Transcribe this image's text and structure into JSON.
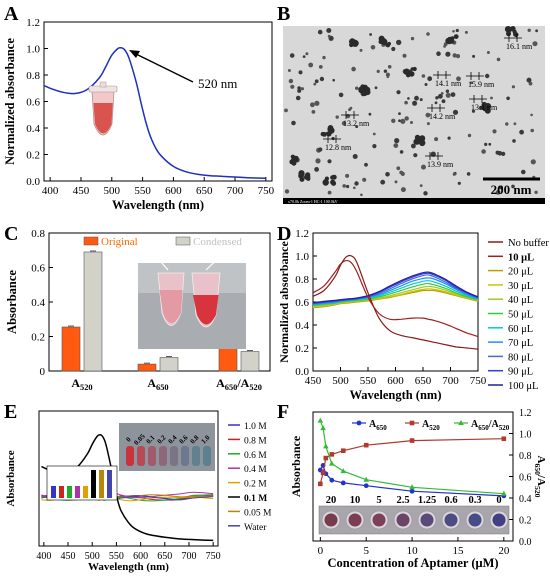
{
  "panels": {
    "A": {
      "letter": "A",
      "chart_data": {
        "type": "line",
        "xlabel": "Wavelength (nm)",
        "ylabel": "Normalized absorbance",
        "xlim": [
          390,
          760
        ],
        "ylim": [
          0,
          1.2
        ],
        "xticks": [
          "400",
          "450",
          "500",
          "550",
          "600",
          "650",
          "700",
          "750"
        ],
        "yticks": [
          "0.0",
          "0.2",
          "0.4",
          "0.6",
          "0.8",
          "1.0",
          "1.2"
        ],
        "annotation": "520 nm",
        "series": [
          {
            "color": "#1f2fbf",
            "x": [
              390,
              400,
              420,
              440,
              460,
              480,
              490,
              500,
              510,
              515,
              520,
              525,
              530,
              540,
              550,
              560,
              570,
              580,
              600,
              620,
              640,
              660,
              680,
              700,
              720,
              750
            ],
            "y": [
              0.72,
              0.7,
              0.67,
              0.66,
              0.69,
              0.78,
              0.86,
              0.95,
              1.0,
              1.005,
              0.995,
              0.96,
              0.9,
              0.74,
              0.54,
              0.37,
              0.26,
              0.19,
              0.11,
              0.07,
              0.05,
              0.04,
              0.035,
              0.03,
              0.025,
              0.02
            ]
          }
        ]
      }
    },
    "B": {
      "letter": "B",
      "scalebar": "200 nm",
      "footer": "x70.0k Zoom-1 HC-1 100.0kV",
      "measurements": [
        "16.1 nm",
        "14.1 nm",
        "15.9 nm",
        "14.2 nm",
        "13.1 nm",
        "13.2 nm",
        "12.8 nm",
        "13.9 nm"
      ]
    },
    "C": {
      "letter": "C",
      "chart_data": {
        "type": "bar",
        "ylabel": "Absorbance",
        "ylim": [
          0,
          0.8
        ],
        "yticks": [
          "0",
          "0.2",
          "0.4",
          "0.6",
          "0.8"
        ],
        "categories": [
          "A520",
          "A650",
          "A650/A520"
        ],
        "category_labels": [
          "A520",
          "A650",
          "A650/A520"
        ],
        "series": [
          {
            "name": "Original",
            "color": "#ff5a10",
            "values": [
              0.255,
              0.04,
              0.145
            ]
          },
          {
            "name": "Condensed",
            "color": "#d2d2c8",
            "values": [
              0.69,
              0.078,
              0.113
            ]
          }
        ],
        "legend_color_original": "#ff6a00",
        "legend_color_condensed": "#c0c0c0"
      }
    },
    "D": {
      "letter": "D",
      "chart_data": {
        "type": "line",
        "xlabel": "Wavelength (nm)",
        "ylabel": "Normalized absorbance",
        "xlim": [
          450,
          750
        ],
        "ylim": [
          0,
          1.2
        ],
        "xticks": [
          "450",
          "500",
          "550",
          "600",
          "650",
          "700",
          "750"
        ],
        "yticks": [
          "0.0",
          "0.2",
          "0.4",
          "0.6",
          "0.8",
          "1.0",
          "1.2"
        ],
        "x": [
          450,
          470,
          490,
          500,
          510,
          520,
          530,
          550,
          570,
          590,
          610,
          630,
          650,
          660,
          670,
          690,
          710,
          730,
          750
        ],
        "nobuffer": {
          "name": "No buffer",
          "color": "#8b1a1a",
          "y": [
            0.65,
            0.7,
            0.82,
            0.92,
            0.99,
            1.0,
            0.94,
            0.68,
            0.46,
            0.35,
            0.31,
            0.29,
            0.27,
            0.26,
            0.25,
            0.23,
            0.21,
            0.2,
            0.19
          ]
        },
        "tenul": {
          "name": "10 μL",
          "color": "#a02020",
          "y": [
            0.68,
            0.74,
            0.86,
            0.93,
            0.96,
            0.94,
            0.86,
            0.64,
            0.5,
            0.45,
            0.45,
            0.46,
            0.46,
            0.45,
            0.44,
            0.41,
            0.37,
            0.33,
            0.3
          ]
        },
        "buffer_series": [
          {
            "name": "20 μL",
            "color": "#b8a000",
            "y": [
              0.55,
              0.56,
              0.575,
              0.585,
              0.59,
              0.595,
              0.6,
              0.61,
              0.625,
              0.64,
              0.66,
              0.68,
              0.7,
              0.7,
              0.7,
              0.68,
              0.655,
              0.63,
              0.605
            ]
          },
          {
            "name": "30 μL",
            "color": "#cfc000",
            "y": [
              0.555,
              0.565,
              0.58,
              0.59,
              0.595,
              0.6,
              0.605,
              0.615,
              0.63,
              0.645,
              0.665,
              0.69,
              0.71,
              0.715,
              0.71,
              0.69,
              0.66,
              0.635,
              0.61
            ]
          },
          {
            "name": "40 μL",
            "color": "#9acd32",
            "y": [
              0.56,
              0.57,
              0.585,
              0.595,
              0.6,
              0.605,
              0.61,
              0.62,
              0.635,
              0.655,
              0.68,
              0.705,
              0.73,
              0.735,
              0.73,
              0.705,
              0.67,
              0.64,
              0.615
            ]
          },
          {
            "name": "50 μL",
            "color": "#32cd32",
            "y": [
              0.57,
              0.58,
              0.59,
              0.6,
              0.605,
              0.61,
              0.615,
              0.625,
              0.645,
              0.67,
              0.7,
              0.73,
              0.755,
              0.76,
              0.75,
              0.72,
              0.68,
              0.645,
              0.62
            ]
          },
          {
            "name": "60 μL",
            "color": "#00cccc",
            "y": [
              0.575,
              0.585,
              0.595,
              0.605,
              0.61,
              0.615,
              0.62,
              0.63,
              0.655,
              0.685,
              0.72,
              0.755,
              0.78,
              0.785,
              0.775,
              0.74,
              0.695,
              0.655,
              0.625
            ]
          },
          {
            "name": "70 μL",
            "color": "#1e90ff",
            "y": [
              0.58,
              0.59,
              0.6,
              0.61,
              0.615,
              0.62,
              0.625,
              0.64,
              0.665,
              0.7,
              0.74,
              0.78,
              0.805,
              0.81,
              0.8,
              0.76,
              0.71,
              0.665,
              0.63
            ]
          },
          {
            "name": "80 μL",
            "color": "#4169e1",
            "y": [
              0.585,
              0.595,
              0.605,
              0.612,
              0.618,
              0.622,
              0.628,
              0.645,
              0.675,
              0.715,
              0.76,
              0.8,
              0.83,
              0.835,
              0.82,
              0.775,
              0.72,
              0.675,
              0.635
            ]
          },
          {
            "name": "90 μL",
            "color": "#3a3acd",
            "y": [
              0.59,
              0.6,
              0.61,
              0.615,
              0.62,
              0.625,
              0.63,
              0.65,
              0.685,
              0.73,
              0.775,
              0.815,
              0.845,
              0.85,
              0.835,
              0.79,
              0.73,
              0.68,
              0.64
            ]
          },
          {
            "name": "100 μL",
            "color": "#2020a0",
            "y": [
              0.595,
              0.605,
              0.615,
              0.62,
              0.625,
              0.63,
              0.635,
              0.655,
              0.69,
              0.74,
              0.785,
              0.825,
              0.855,
              0.86,
              0.845,
              0.8,
              0.74,
              0.685,
              0.645
            ]
          }
        ]
      }
    },
    "E": {
      "letter": "E",
      "chart_data": {
        "type": "line",
        "xlabel": "Wavelength (nm)",
        "ylabel": "Absorbance",
        "xlim": [
          390,
          760
        ],
        "ylim": [
          0,
          0.85
        ],
        "xticks": [
          "400",
          "450",
          "500",
          "550",
          "600",
          "650",
          "700",
          "750"
        ],
        "tube_labels": [
          "0",
          "0.05",
          "0.1",
          "0.2",
          "0.4",
          "0.6",
          "0.8",
          "1.0"
        ],
        "x": [
          395,
          410,
          430,
          450,
          470,
          490,
          500,
          510,
          515,
          520,
          525,
          530,
          540,
          550,
          560,
          580,
          600,
          620,
          650,
          680,
          710,
          750
        ],
        "main": {
          "name": "0.1 M",
          "color": "#000000",
          "y": [
            0.5,
            0.48,
            0.46,
            0.465,
            0.5,
            0.58,
            0.64,
            0.69,
            0.7,
            0.695,
            0.67,
            0.62,
            0.48,
            0.32,
            0.22,
            0.13,
            0.09,
            0.07,
            0.055,
            0.045,
            0.04,
            0.035
          ]
        },
        "flat_series": [
          {
            "name": "1.0 M",
            "color": "#3333cc",
            "base": 0.31
          },
          {
            "name": "0.8 M",
            "color": "#cc2222",
            "base": 0.305
          },
          {
            "name": "0.6 M",
            "color": "#22aa22",
            "base": 0.3
          },
          {
            "name": "0.4 M",
            "color": "#aa33aa",
            "base": 0.32
          },
          {
            "name": "0.2 M",
            "color": "#e0a000",
            "base": 0.3
          },
          {
            "name": "0.05 M",
            "color": "#b8860b",
            "base": 0.315
          },
          {
            "name": "Water",
            "color": "#4444aa",
            "base": 0.305
          }
        ],
        "legend_order": [
          "1.0 M",
          "0.8 M",
          "0.6 M",
          "0.4 M",
          "0.2 M",
          "0.1 M",
          "0.05 M",
          "Water"
        ],
        "legend_colors": [
          "#3333cc",
          "#cc2222",
          "#22aa22",
          "#aa33aa",
          "#e0a000",
          "#000000",
          "#b8860b",
          "#4444aa"
        ],
        "inset_bars": [
          0.3,
          0.3,
          0.3,
          0.3,
          0.3,
          0.7,
          0.7,
          0.7
        ],
        "inset_colors": [
          "#3333cc",
          "#cc2222",
          "#22aa22",
          "#aa33aa",
          "#e0a000",
          "#000000",
          "#b8860b",
          "#4444aa"
        ]
      }
    },
    "F": {
      "letter": "F",
      "chart_data": {
        "type": "line",
        "xlabel": "Concentration of Aptamer (μM)",
        "ylabel": "Absorbance",
        "y2label": "A650/A520",
        "xlim": [
          -0.8,
          21
        ],
        "ylim": [
          0,
          0.7
        ],
        "y2lim": [
          0,
          1.2
        ],
        "xticks": [
          "0",
          "5",
          "10",
          "15",
          "20"
        ],
        "y2ticks": [
          "0.0",
          "0.2",
          "0.4",
          "0.6",
          "0.8",
          "1.0",
          "1.2"
        ],
        "tube_labels": [
          "20",
          "10",
          "5",
          "2.5",
          "1.25",
          "0.6",
          "0.3",
          "0"
        ],
        "x": [
          0,
          0.3,
          0.6,
          1.25,
          2.5,
          5,
          10,
          20
        ],
        "series": [
          {
            "name": "A650",
            "color": "#2233cc",
            "marker": "circle",
            "axis": "left",
            "y": [
              0.385,
              0.41,
              0.365,
              0.33,
              0.315,
              0.3,
              0.27,
              0.245
            ]
          },
          {
            "name": "A520",
            "color": "#b03a2e",
            "marker": "square",
            "axis": "left",
            "y": [
              0.31,
              0.37,
              0.45,
              0.47,
              0.49,
              0.52,
              0.545,
              0.555
            ]
          },
          {
            "name": "A650/A520",
            "color": "#33bb33",
            "marker": "triangle",
            "axis": "right",
            "y": [
              1.12,
              1.05,
              0.88,
              0.72,
              0.65,
              0.57,
              0.5,
              0.44
            ]
          }
        ]
      }
    }
  }
}
